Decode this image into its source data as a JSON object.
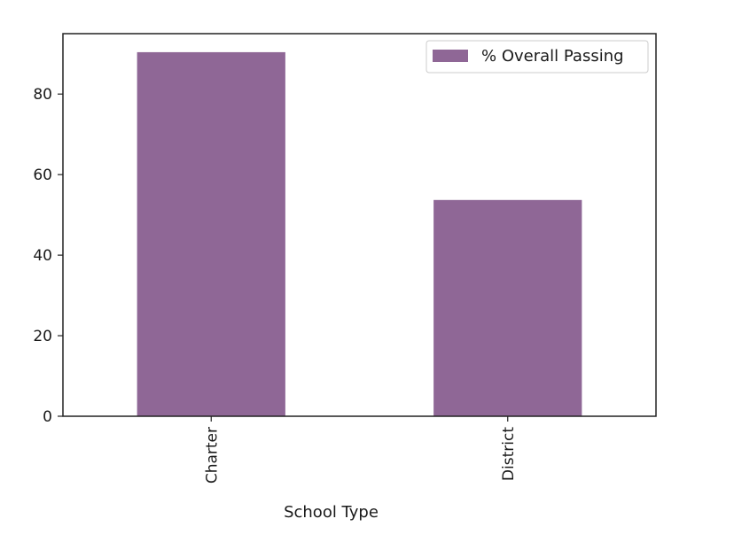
{
  "chart_data": {
    "type": "bar",
    "categories": [
      "Charter",
      "District"
    ],
    "series": [
      {
        "name": "% Overall Passing",
        "values": [
          90.4,
          53.7
        ],
        "color": "#8f6796"
      }
    ],
    "xlabel": "School Type",
    "ylabel": "",
    "ylim": [
      0,
      95
    ],
    "yticks": [
      "0",
      "20",
      "40",
      "60",
      "80"
    ],
    "legend_position": "top-right",
    "grid": false
  }
}
